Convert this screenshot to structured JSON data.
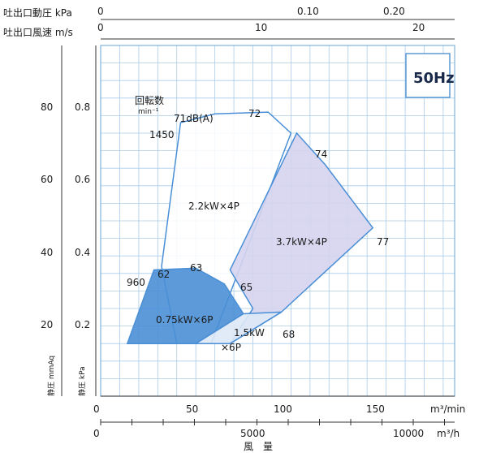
{
  "chart_data": {
    "type": "area",
    "frequency_badge": "50Hz",
    "top_axis_pressure": {
      "label": "吐出口動圧 kPa",
      "ticks": [
        "0",
        "0.10",
        "0.20"
      ]
    },
    "top_axis_velocity": {
      "label": "吐出口風速 m/s",
      "ticks": [
        "0",
        "10",
        "20"
      ]
    },
    "y_axis_mmaq": {
      "label": "静圧 mmAq",
      "ticks": [
        "20",
        "40",
        "60",
        "80"
      ]
    },
    "y_axis_kpa": {
      "label": "静圧 kPa",
      "ticks": [
        "0.2",
        "0.4",
        "0.6",
        "0.8"
      ]
    },
    "x_axis_flow_min": {
      "unit": "m³/min",
      "ticks": [
        "0",
        "50",
        "100",
        "150"
      ]
    },
    "x_axis_flow_h": {
      "unit": "m³/h",
      "ticks": [
        "0",
        "5000",
        "10000"
      ]
    },
    "x_axis_title": "風　量",
    "speed_label": "回転数",
    "speed_unit": "min⁻¹",
    "xlim": [
      0,
      186
    ],
    "ylim": [
      -0.05,
      0.95
    ],
    "regions": [
      {
        "name": "2.2kW×4P",
        "fill": "#ffffff",
        "points": [
          [
            42,
            0.73
          ],
          [
            60,
            0.755
          ],
          [
            88,
            0.76
          ],
          [
            100,
            0.7
          ],
          [
            58,
            0.1
          ],
          [
            40,
            0.1
          ],
          [
            32,
            0.32
          ]
        ]
      },
      {
        "name": "3.7kW×4P",
        "fill": "#d6d4ee",
        "points": [
          [
            103,
            0.7
          ],
          [
            118,
            0.61
          ],
          [
            143,
            0.43
          ],
          [
            95,
            0.19
          ],
          [
            68,
            0.1
          ],
          [
            80,
            0.2
          ],
          [
            68,
            0.31
          ]
        ]
      },
      {
        "name": "0.75kW×6P",
        "fill": "#4a8fd6",
        "points": [
          [
            14,
            0.1
          ],
          [
            28,
            0.31
          ],
          [
            50,
            0.315
          ],
          [
            65,
            0.27
          ],
          [
            75,
            0.185
          ],
          [
            50,
            0.1
          ]
        ]
      },
      {
        "name": "1.5kW×6P",
        "fill": "#dde9f6",
        "points": [
          [
            50,
            0.1
          ],
          [
            75,
            0.185
          ],
          [
            95,
            0.19
          ],
          [
            68,
            0.1
          ]
        ]
      }
    ],
    "point_labels": [
      {
        "text": "1450",
        "x": 42,
        "y": 0.73
      },
      {
        "text": "71dB(A)",
        "x": 42,
        "y": 0.73
      },
      {
        "text": "72",
        "x": 88,
        "y": 0.76
      },
      {
        "text": "74",
        "x": 103,
        "y": 0.7
      },
      {
        "text": "77",
        "x": 143,
        "y": 0.43
      },
      {
        "text": "960",
        "x": 28,
        "y": 0.31
      },
      {
        "text": "62",
        "x": 28,
        "y": 0.31
      },
      {
        "text": "63",
        "x": 50,
        "y": 0.315
      },
      {
        "text": "65",
        "x": 75,
        "y": 0.185
      },
      {
        "text": "68",
        "x": 95,
        "y": 0.19
      }
    ]
  }
}
